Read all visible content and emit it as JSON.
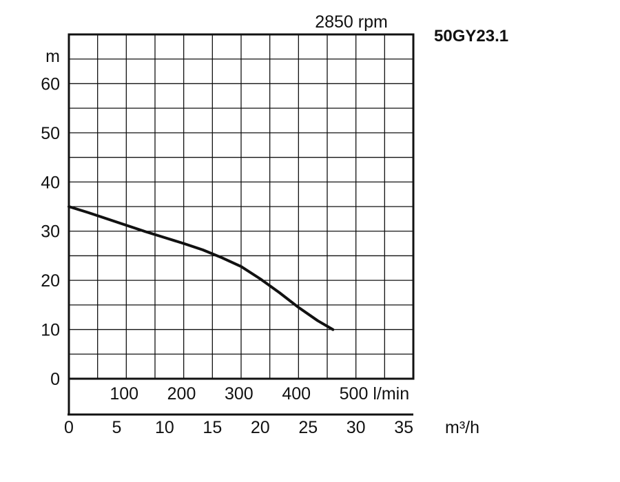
{
  "chart_data": {
    "type": "line",
    "title": "2850 rpm",
    "model_label": "50GY23.1",
    "y_unit_label": "m",
    "ylim": [
      0,
      70
    ],
    "y_ticks": [
      0,
      10,
      20,
      30,
      40,
      50,
      60
    ],
    "x_axis_lpm": {
      "lim": [
        0,
        600
      ],
      "ticks": [
        100,
        200,
        300,
        400,
        500
      ],
      "tick_labels": [
        "100",
        "200",
        "300",
        "400",
        "500 l/min"
      ]
    },
    "x_axis_m3h": {
      "lim": [
        0,
        36
      ],
      "ticks": [
        0,
        5,
        10,
        15,
        20,
        25,
        30,
        35
      ],
      "unit_label": "m³/h"
    },
    "grid": true,
    "series": [
      {
        "x_m3h": [
          0,
          2,
          4,
          6,
          8,
          10,
          12,
          14,
          16,
          18,
          20,
          22,
          24,
          26,
          27.6
        ],
        "y_m": [
          35,
          33.8,
          32.5,
          31.2,
          29.9,
          28.7,
          27.5,
          26.2,
          24.6,
          22.8,
          20.3,
          17.5,
          14.5,
          11.8,
          10
        ]
      }
    ]
  }
}
